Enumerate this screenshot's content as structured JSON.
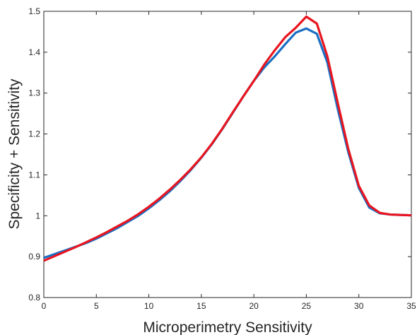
{
  "chart_data": {
    "type": "line",
    "title": "",
    "xlabel": "Microperimetry Sensitivity",
    "ylabel": "Specificity + Sensitivity",
    "xlim": [
      0,
      35
    ],
    "ylim": [
      0.8,
      1.5
    ],
    "xticks": [
      0,
      5,
      10,
      15,
      20,
      25,
      30,
      35
    ],
    "xtick_labels": [
      "0",
      "5",
      "10",
      "15",
      "20",
      "25",
      "30",
      "35"
    ],
    "yticks": [
      0.8,
      0.9,
      1.0,
      1.1,
      1.2,
      1.3,
      1.4,
      1.5
    ],
    "ytick_labels": [
      "0.8",
      "0.9",
      "1",
      "1.1",
      "1.2",
      "1.3",
      "1.4",
      "1.5"
    ],
    "grid": false,
    "legend": "none",
    "series": [
      {
        "color": "#1a6fc4",
        "x": [
          0,
          1,
          2,
          3,
          4,
          5,
          6,
          7,
          8,
          9,
          10,
          11,
          12,
          13,
          14,
          15,
          16,
          17,
          18,
          19,
          20,
          21,
          22,
          23,
          24,
          25,
          26,
          27,
          28,
          29,
          30,
          31,
          32,
          33,
          34,
          35
        ],
        "y": [
          0.897,
          0.906,
          0.915,
          0.924,
          0.933,
          0.944,
          0.957,
          0.97,
          0.985,
          1.0,
          1.018,
          1.038,
          1.06,
          1.085,
          1.112,
          1.142,
          1.175,
          1.212,
          1.252,
          1.292,
          1.33,
          1.363,
          1.39,
          1.42,
          1.448,
          1.458,
          1.445,
          1.375,
          1.26,
          1.155,
          1.068,
          1.02,
          1.006,
          1.003,
          1.002,
          1.001
        ]
      },
      {
        "color": "#e8151f",
        "x": [
          0,
          1,
          2,
          3,
          4,
          5,
          6,
          7,
          8,
          9,
          10,
          11,
          12,
          13,
          14,
          15,
          16,
          17,
          18,
          19,
          20,
          21,
          22,
          23,
          24,
          25,
          26,
          27,
          28,
          29,
          30,
          31,
          32,
          33,
          34,
          35
        ],
        "y": [
          0.89,
          0.901,
          0.912,
          0.923,
          0.935,
          0.947,
          0.96,
          0.974,
          0.988,
          1.004,
          1.022,
          1.042,
          1.064,
          1.088,
          1.114,
          1.143,
          1.176,
          1.213,
          1.253,
          1.292,
          1.33,
          1.37,
          1.405,
          1.437,
          1.46,
          1.487,
          1.47,
          1.39,
          1.275,
          1.163,
          1.073,
          1.025,
          1.007,
          1.003,
          1.002,
          1.001
        ]
      }
    ]
  }
}
